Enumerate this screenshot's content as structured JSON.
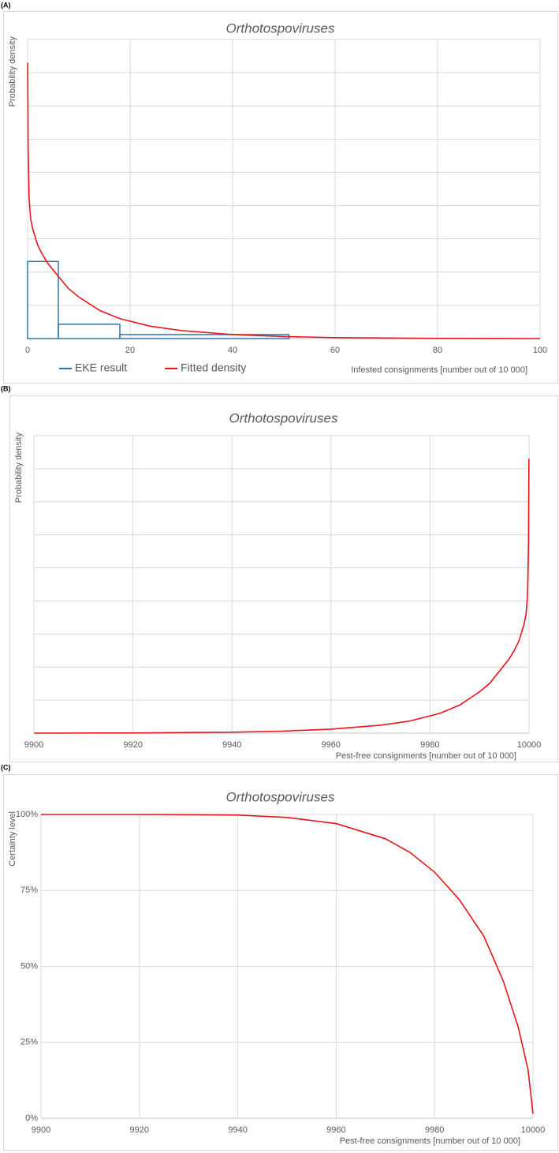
{
  "chart_data": [
    {
      "type": "line",
      "panel_label": "(A)",
      "title": "Orthotospoviruses",
      "x_label": "Infested consignments [number out of 10 000]",
      "y_label": "Probability density",
      "xlim": [
        0,
        100
      ],
      "xticks": [
        0,
        20,
        40,
        60,
        80,
        100
      ],
      "ylim": [
        0,
        0.09
      ],
      "yticks": [
        0,
        0.01,
        0.02,
        0.03,
        0.04,
        0.05,
        0.06,
        0.07,
        0.08,
        0.09
      ],
      "ytick_labels": false,
      "grid": true,
      "legend": "bottom-left",
      "series": [
        {
          "name": "EKE result",
          "color": "#2e75b6",
          "bins": [
            0,
            6,
            18,
            51
          ],
          "values": [
            0.0232,
            0.0043,
            0.0012
          ]
        },
        {
          "name": "Fitted density",
          "color": "#e8141b",
          "x": [
            0.02,
            0.1,
            0.3,
            0.6,
            1,
            2,
            3,
            4,
            6,
            8,
            10,
            14,
            18,
            24,
            30,
            40,
            50,
            60,
            80,
            100
          ],
          "values": [
            0.083,
            0.058,
            0.042,
            0.036,
            0.033,
            0.028,
            0.025,
            0.0225,
            0.0187,
            0.015,
            0.0125,
            0.0085,
            0.006,
            0.0037,
            0.0024,
            0.0012,
            0.0006,
            0.0003,
            5e-05,
            0
          ]
        }
      ]
    },
    {
      "type": "line",
      "panel_label": "(B)",
      "title": "Orthotospoviruses",
      "x_label": "Pest-free consignments [number out of 10 000]",
      "y_label": "Probability density",
      "xlim": [
        9900,
        10000
      ],
      "xticks": [
        9900,
        9920,
        9940,
        9960,
        9980,
        10000
      ],
      "ylim": [
        0,
        0.09
      ],
      "yticks": [
        0,
        0.01,
        0.02,
        0.03,
        0.04,
        0.05,
        0.06,
        0.07,
        0.08,
        0.09
      ],
      "ytick_labels": false,
      "grid": true,
      "series": [
        {
          "name": "Fitted density",
          "color": "#e8141b",
          "x": [
            9900,
            9920,
            9940,
            9950,
            9960,
            9970,
            9976,
            9982,
            9986,
            9990,
            9992,
            9994,
            9996,
            9997,
            9998,
            9999,
            9999.4,
            9999.7,
            9999.9,
            9999.98
          ],
          "values": [
            0,
            5e-05,
            0.0003,
            0.0006,
            0.0012,
            0.0024,
            0.0037,
            0.006,
            0.0085,
            0.0125,
            0.015,
            0.0187,
            0.0225,
            0.025,
            0.028,
            0.033,
            0.036,
            0.042,
            0.058,
            0.083
          ]
        }
      ]
    },
    {
      "type": "line",
      "panel_label": "(C)",
      "title": "Orthotospoviruses",
      "x_label": "Pest-free consignments [number out of 10 000]",
      "y_label": "Certainty level",
      "xlim": [
        9900,
        10000
      ],
      "xticks": [
        9900,
        9920,
        9940,
        9960,
        9980,
        10000
      ],
      "ylim": [
        0,
        100
      ],
      "yticks": [
        {
          "value": 0,
          "label": "0%"
        },
        {
          "value": 25,
          "label": "25%"
        },
        {
          "value": 50,
          "label": "50%"
        },
        {
          "value": 75,
          "label": "75%"
        },
        {
          "value": 100,
          "label": "100%"
        }
      ],
      "grid": true,
      "series": [
        {
          "name": "Certainty level",
          "color": "#e8141b",
          "x": [
            9900,
            9920,
            9940,
            9950,
            9960,
            9970,
            9975,
            9980,
            9985,
            9990,
            9994,
            9997,
            9999,
            10000
          ],
          "values": [
            100,
            100,
            99.8,
            99,
            97,
            92,
            87.5,
            81,
            72,
            60,
            45,
            30,
            16,
            1.5
          ]
        }
      ]
    }
  ]
}
